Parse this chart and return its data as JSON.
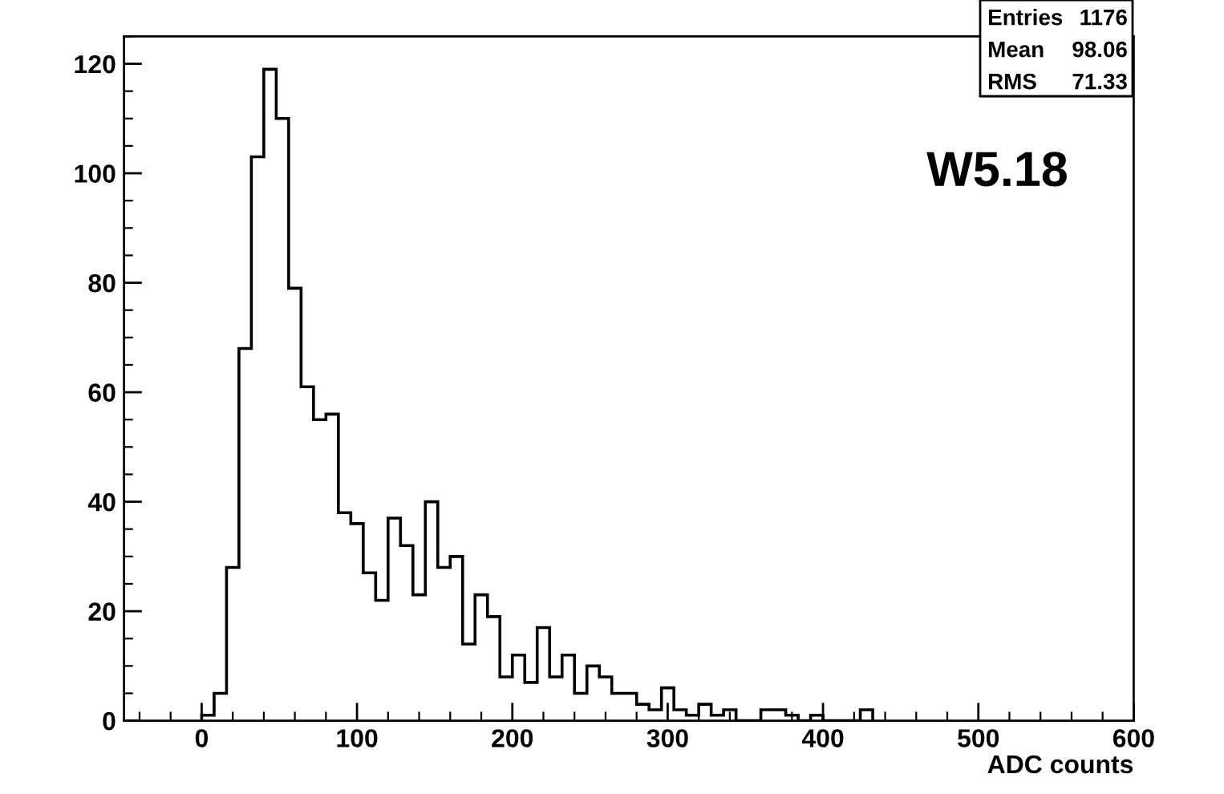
{
  "chart_data": {
    "type": "histogram",
    "xlabel": "ADC counts",
    "bins": [
      0,
      8,
      16,
      24,
      32,
      40,
      48,
      56,
      64,
      72,
      80,
      88,
      96,
      104,
      112,
      120,
      128,
      136,
      144,
      152,
      160,
      168,
      176,
      184,
      192,
      200,
      208,
      216,
      224,
      232,
      240,
      248,
      256,
      264,
      272,
      280,
      288,
      296,
      304,
      312,
      320,
      328,
      336,
      344,
      352,
      360,
      368,
      376,
      384,
      392,
      400,
      408,
      416,
      424,
      432
    ],
    "values": [
      1,
      5,
      28,
      68,
      103,
      119,
      110,
      79,
      61,
      55,
      56,
      38,
      36,
      27,
      22,
      37,
      32,
      23,
      40,
      28,
      30,
      14,
      23,
      19,
      8,
      12,
      7,
      17,
      8,
      12,
      5,
      10,
      8,
      5,
      5,
      3,
      2,
      6,
      2,
      1,
      3,
      1,
      2,
      0,
      0,
      2,
      2,
      1,
      0,
      1,
      0,
      0,
      0,
      2
    ],
    "color": "#000000",
    "xlim": [
      -50,
      600
    ],
    "xticks": [
      0,
      100,
      200,
      300,
      400,
      500,
      600
    ],
    "ylim": [
      0,
      125
    ],
    "yticks": [
      0,
      20,
      40,
      60,
      80,
      100,
      120
    ],
    "grid": false,
    "legend": false,
    "annotations": [
      "W5.18",
      "Entries",
      "1176",
      "Mean",
      "98.06",
      "RMS",
      "71.33"
    ]
  }
}
